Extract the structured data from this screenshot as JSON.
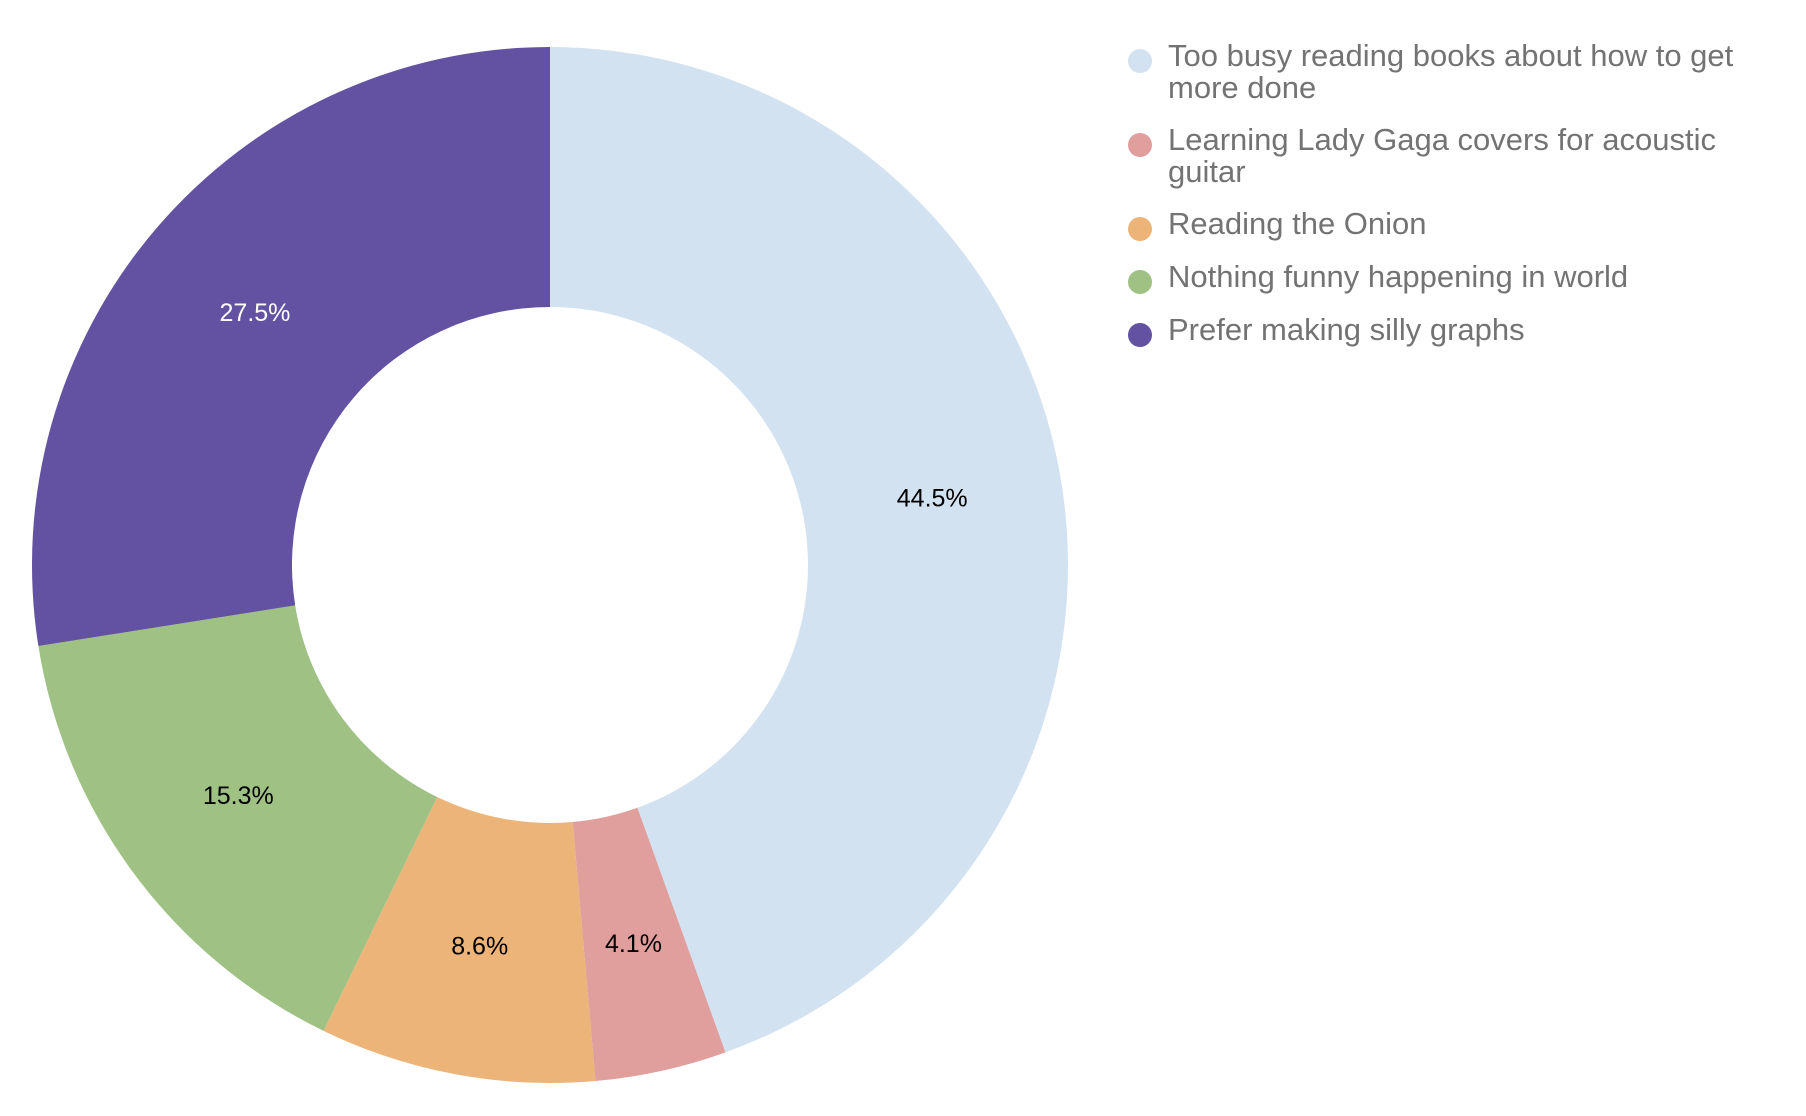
{
  "chart_data": {
    "type": "pie",
    "variant": "donut",
    "legend_position": "right",
    "slices": [
      {
        "label": "Too busy reading books about how to get more done",
        "value": 44.5,
        "display": "44.5%",
        "color": "#d3e2f1",
        "label_color": "#000000"
      },
      {
        "label": "Learning Lady Gaga covers for acoustic guitar",
        "value": 4.1,
        "display": "4.1%",
        "color": "#e09e9c",
        "label_color": "#000000"
      },
      {
        "label": "Reading the Onion",
        "value": 8.6,
        "display": "8.6%",
        "color": "#ecb479",
        "label_color": "#000000"
      },
      {
        "label": "Nothing funny happening in world",
        "value": 15.3,
        "display": "15.3%",
        "color": "#9fc284",
        "label_color": "#000000"
      },
      {
        "label": "Prefer making silly graphs",
        "value": 27.5,
        "display": "27.5%",
        "color": "#6252a1",
        "label_color": "#ffffff"
      }
    ]
  }
}
